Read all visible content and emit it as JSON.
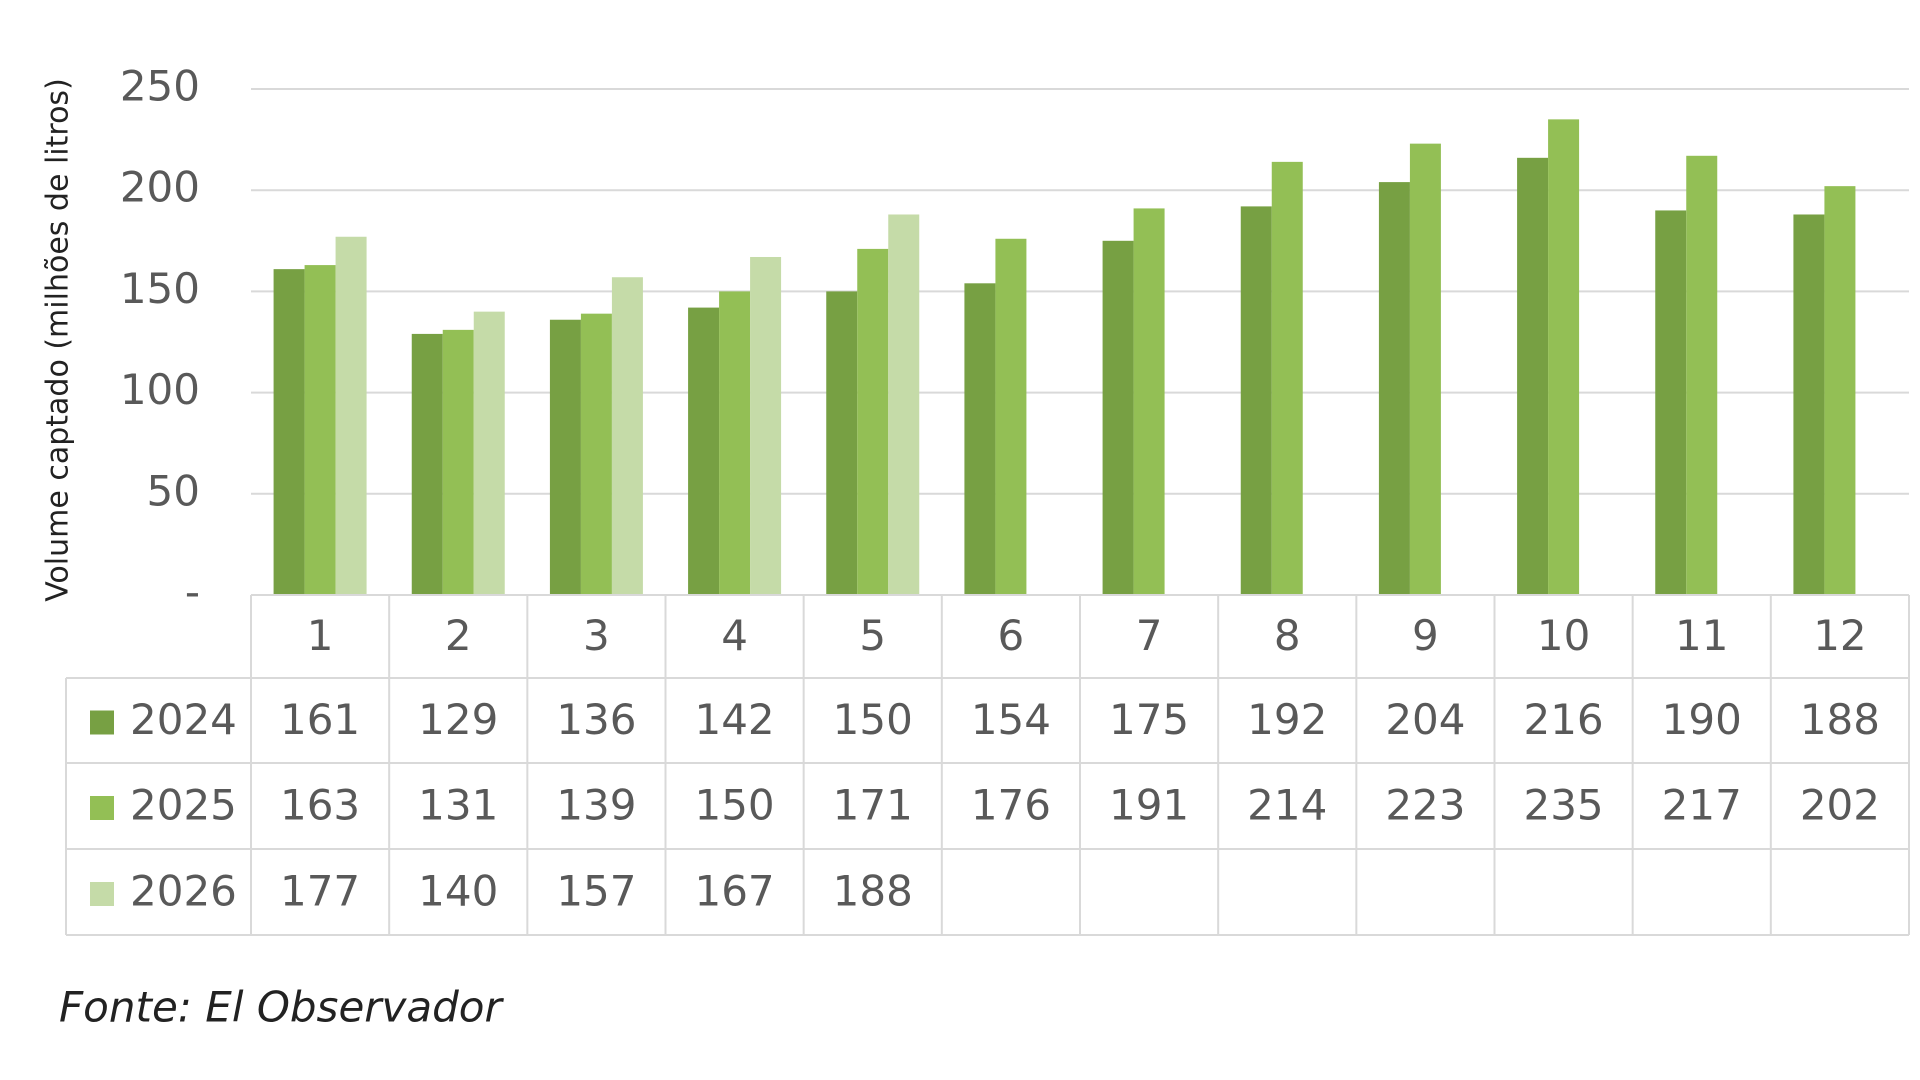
{
  "chart_data": {
    "type": "bar",
    "y_label": "Volume captado (milhões de litros)",
    "source": "Fonte: El Observador",
    "categories": [
      "1",
      "2",
      "3",
      "4",
      "5",
      "6",
      "7",
      "8",
      "9",
      "10",
      "11",
      "12"
    ],
    "series": [
      {
        "name": "2024",
        "color": "#77a043",
        "values": [
          161,
          129,
          136,
          142,
          150,
          154,
          175,
          192,
          204,
          216,
          190,
          188
        ]
      },
      {
        "name": "2025",
        "color": "#93bf55",
        "values": [
          163,
          131,
          139,
          150,
          171,
          176,
          191,
          214,
          223,
          235,
          217,
          202
        ]
      },
      {
        "name": "2026",
        "color": "#c5dba8",
        "values": [
          177,
          140,
          157,
          167,
          188,
          null,
          null,
          null,
          null,
          null,
          null,
          null
        ]
      }
    ],
    "ylim": [
      0,
      250
    ],
    "yticks": [
      {
        "value": 0,
        "label": "-"
      },
      50,
      100,
      150,
      200,
      250
    ],
    "grid": true,
    "data_table": true
  }
}
